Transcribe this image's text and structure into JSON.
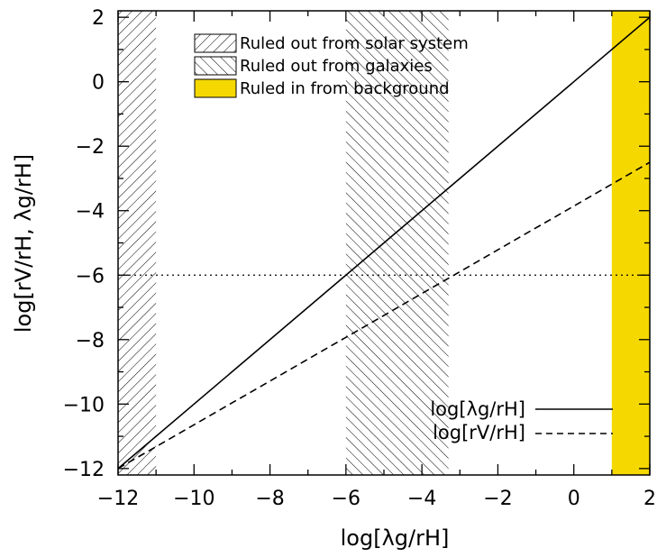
{
  "chart_data": {
    "type": "line",
    "xlabel": "log[λg/rH]",
    "ylabel": "log[rV/rH,  λg/rH]",
    "xlim": [
      -12,
      2
    ],
    "ylim": [
      -12.2,
      2.2
    ],
    "xticks": [
      -12,
      -10,
      -8,
      -6,
      -4,
      -2,
      0,
      2
    ],
    "yticks": [
      2,
      0,
      -2,
      -4,
      -6,
      -8,
      -10,
      -12
    ],
    "series": [
      {
        "name": "log[λg/rH]",
        "style": "solid",
        "x": [
          -12,
          2
        ],
        "y": [
          -12,
          2
        ]
      },
      {
        "name": "log[rV/rH]",
        "style": "dashed",
        "x": [
          -12,
          2
        ],
        "y": [
          -12,
          -2.5
        ]
      }
    ],
    "reference_lines": [
      {
        "orientation": "horizontal",
        "y": -6,
        "style": "dotted"
      }
    ],
    "regions": [
      {
        "label": "Ruled out from solar system",
        "x": [
          -12,
          -11
        ],
        "fill": "hatch-forward"
      },
      {
        "label": "Ruled out from galaxies",
        "x": [
          -6,
          -3.3
        ],
        "fill": "hatch-back"
      },
      {
        "label": "Ruled in from background",
        "x": [
          1,
          2
        ],
        "fill": "#f5d800"
      }
    ],
    "grid": false,
    "legend_position": "top-center"
  },
  "colors": {
    "background_band": "#f5d800",
    "ink": "#000000"
  }
}
